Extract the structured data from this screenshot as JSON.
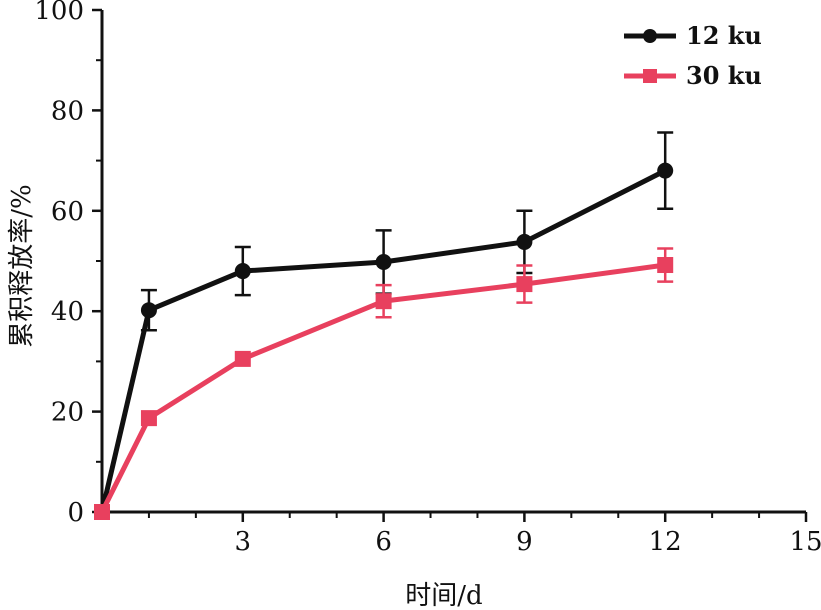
{
  "chart_data": {
    "type": "line",
    "title": "",
    "xlabel": "时间/d",
    "ylabel": "累积释放率/%",
    "xlim": [
      0,
      15
    ],
    "ylim": [
      0,
      100
    ],
    "xticks": [
      3,
      6,
      9,
      12,
      15
    ],
    "xtick_labels": [
      "3",
      "6",
      "9",
      "12",
      "15"
    ],
    "yticks": [
      0,
      20,
      40,
      60,
      80,
      100
    ],
    "ytick_labels": [
      "0",
      "20",
      "40",
      "60",
      "80",
      "100"
    ],
    "grid": false,
    "legend_position": "top-right",
    "series": [
      {
        "name": "12 ku",
        "color": "#111111",
        "marker": "circle",
        "x": [
          0,
          1,
          3,
          6,
          9,
          12
        ],
        "y": [
          0,
          40.2,
          48,
          49.8,
          53.8,
          68
        ],
        "err": [
          0,
          4,
          4.8,
          6.3,
          6.2,
          7.6
        ]
      },
      {
        "name": "30 ku",
        "color": "#e8405e",
        "marker": "square",
        "x": [
          0,
          1,
          3,
          6,
          9,
          12
        ],
        "y": [
          0,
          18.7,
          30.5,
          42,
          45.4,
          49.2
        ],
        "err": [
          0,
          0,
          0,
          3.2,
          3.7,
          3.3
        ]
      }
    ]
  }
}
